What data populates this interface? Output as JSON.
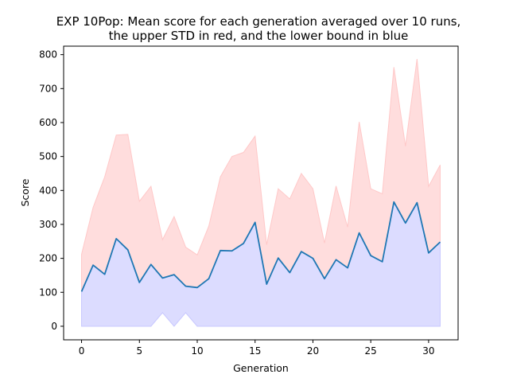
{
  "chart_data": {
    "type": "line",
    "title_lines": [
      "EXP 10Pop: Mean score for each generation averaged over 10 runs,",
      "the upper STD in red, and the lower bound in blue"
    ],
    "xlabel": "Generation",
    "ylabel": "Score",
    "xlim": [
      -1.55,
      32.55
    ],
    "ylim": [
      -40,
      825
    ],
    "xticks": [
      0,
      5,
      10,
      15,
      20,
      25,
      30
    ],
    "yticks": [
      0,
      100,
      200,
      300,
      400,
      500,
      600,
      700,
      800
    ],
    "grid": false,
    "x": [
      0,
      1,
      2,
      3,
      4,
      5,
      6,
      7,
      8,
      9,
      10,
      11,
      12,
      13,
      14,
      15,
      16,
      17,
      18,
      19,
      20,
      21,
      22,
      23,
      24,
      25,
      26,
      27,
      28,
      29,
      30,
      31
    ],
    "series": [
      {
        "values": [
          102,
          180,
          153,
          258,
          225,
          129,
          182,
          142,
          152,
          118,
          114,
          140,
          223,
          222,
          244,
          306,
          124,
          201,
          158,
          220,
          200,
          140,
          196,
          172,
          275,
          208,
          190,
          366,
          304,
          364,
          216,
          248
        ],
        "color": "#1f77b4"
      },
      {
        "values": [
          212,
          350,
          440,
          563,
          565,
          368,
          412,
          255,
          323,
          233,
          210,
          295,
          440,
          500,
          512,
          560,
          240,
          405,
          375,
          450,
          405,
          245,
          413,
          292,
          602,
          405,
          390,
          763,
          530,
          787,
          412,
          475
        ],
        "fill": "#ffdddd"
      },
      {
        "values": [
          0,
          0,
          0,
          0,
          0,
          0,
          0,
          40,
          0,
          40,
          0,
          0,
          0,
          0,
          0,
          0,
          0,
          0,
          0,
          0,
          0,
          0,
          0,
          0,
          0,
          0,
          0,
          0,
          0,
          0,
          0,
          0
        ],
        "fill": "#dcdcff"
      }
    ]
  }
}
